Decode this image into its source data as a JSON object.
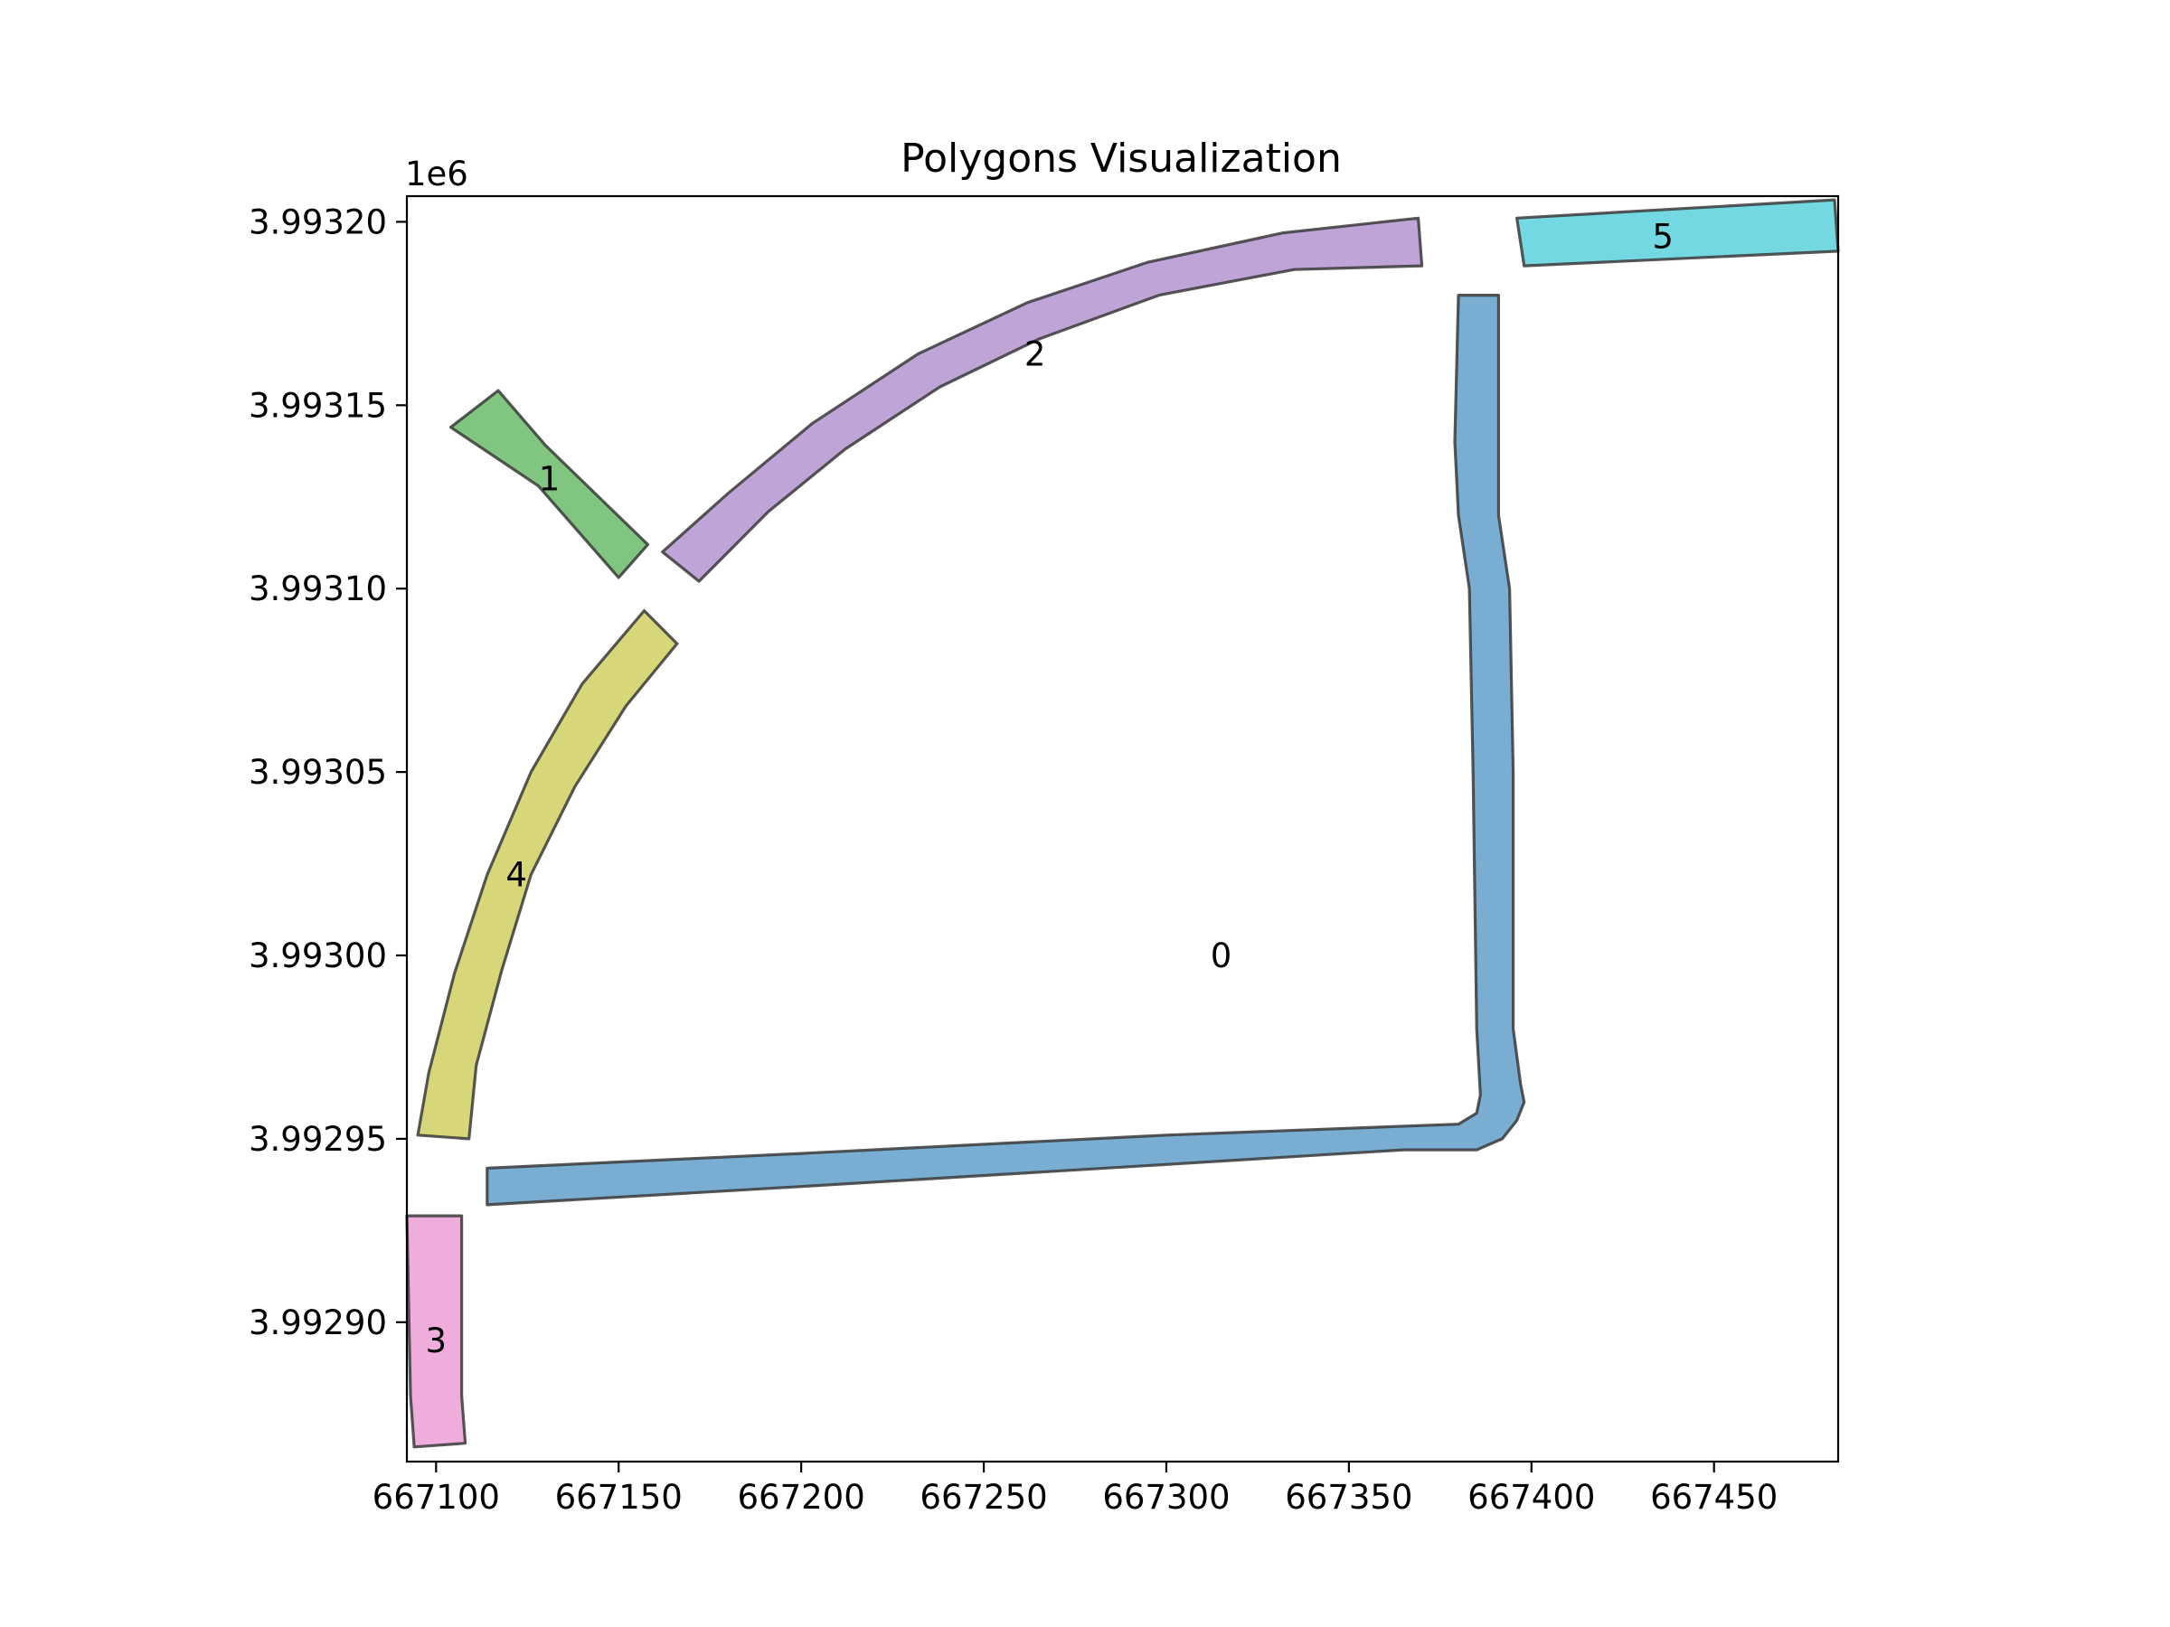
{
  "chart_data": {
    "type": "polygons",
    "title": "Polygons Visualization",
    "xlabel": "",
    "ylabel": "",
    "y_offset_text": "1e6",
    "xlim": [
      667092,
      667484
    ],
    "ylim": [
      3992862,
      3993207
    ],
    "x_ticks": [
      667100,
      667150,
      667200,
      667250,
      667300,
      667350,
      667400,
      667450
    ],
    "x_tick_labels": [
      "667100",
      "667150",
      "667200",
      "667250",
      "667300",
      "667350",
      "667400",
      "667450"
    ],
    "y_ticks": [
      3992900,
      3992950,
      3993000,
      3993050,
      3993100,
      3993150,
      3993200
    ],
    "y_tick_labels": [
      "3.99290",
      "3.99295",
      "3.99300",
      "3.99305",
      "3.99310",
      "3.99315",
      "3.99320"
    ],
    "grid": false,
    "polygons": [
      {
        "label": "0",
        "color": "#1f77b4",
        "label_at": [
          667315,
          3993000
        ],
        "coords": [
          [
            667114,
            3992942
          ],
          [
            667200,
            3992946
          ],
          [
            667300,
            3992951
          ],
          [
            667380,
            3992954
          ],
          [
            667385,
            3992957
          ],
          [
            667386,
            3992962
          ],
          [
            667385,
            3992980
          ],
          [
            667384,
            3993050
          ],
          [
            667383,
            3993100
          ],
          [
            667380,
            3993120
          ],
          [
            667379,
            3993140
          ],
          [
            667380,
            3993180
          ],
          [
            667391,
            3993180
          ],
          [
            667391,
            3993150
          ],
          [
            667391,
            3993120
          ],
          [
            667394,
            3993100
          ],
          [
            667395,
            3993050
          ],
          [
            667395,
            3992980
          ],
          [
            667397,
            3992965
          ],
          [
            667398,
            3992960
          ],
          [
            667396,
            3992955
          ],
          [
            667392,
            3992950
          ],
          [
            667385,
            3992947
          ],
          [
            667377,
            3992947
          ],
          [
            667365,
            3992947
          ],
          [
            667300,
            3992943
          ],
          [
            667200,
            3992937
          ],
          [
            667114,
            3992932
          ]
        ]
      },
      {
        "label": "1",
        "color": "#2ca02c",
        "label_at": [
          667131,
          3993130
        ],
        "coords": [
          [
            667104,
            3993144
          ],
          [
            667117,
            3993154
          ],
          [
            667130,
            3993139
          ],
          [
            667158,
            3993112
          ],
          [
            667150,
            3993103
          ],
          [
            667128,
            3993128
          ],
          [
            667116,
            3993136
          ]
        ]
      },
      {
        "label": "2",
        "color": "#9467bd",
        "label_at": [
          667264,
          3993164
        ],
        "coords": [
          [
            667162,
            3993110
          ],
          [
            667180,
            3993126
          ],
          [
            667203,
            3993145
          ],
          [
            667232,
            3993164
          ],
          [
            667262,
            3993178
          ],
          [
            667295,
            3993189
          ],
          [
            667332,
            3993197
          ],
          [
            667369,
            3993201
          ],
          [
            667370,
            3993188
          ],
          [
            667335,
            3993187
          ],
          [
            667298,
            3993180
          ],
          [
            667265,
            3993168
          ],
          [
            667238,
            3993155
          ],
          [
            667212,
            3993138
          ],
          [
            667191,
            3993121
          ],
          [
            667172,
            3993102
          ]
        ]
      },
      {
        "label": "3",
        "color": "#e377c2",
        "label_at": [
          667100,
          3992895
        ],
        "coords": [
          [
            667092,
            3992929
          ],
          [
            667107,
            3992929
          ],
          [
            667107,
            3992880
          ],
          [
            667108,
            3992867
          ],
          [
            667094,
            3992866
          ],
          [
            667093,
            3992880
          ]
        ]
      },
      {
        "label": "4",
        "color": "#bcbd22",
        "label_at": [
          667122,
          3993022
        ],
        "coords": [
          [
            667095,
            3992951
          ],
          [
            667098,
            3992968
          ],
          [
            667105,
            3992995
          ],
          [
            667114,
            3993022
          ],
          [
            667126,
            3993050
          ],
          [
            667140,
            3993074
          ],
          [
            667157,
            3993094
          ],
          [
            667166,
            3993085
          ],
          [
            667152,
            3993068
          ],
          [
            667138,
            3993046
          ],
          [
            667126,
            3993022
          ],
          [
            667118,
            3992996
          ],
          [
            667111,
            3992970
          ],
          [
            667109,
            3992950
          ]
        ]
      },
      {
        "label": "5",
        "color": "#17becf",
        "label_at": [
          667436,
          3993196
        ],
        "coords": [
          [
            667396,
            3993201
          ],
          [
            667483,
            3993206
          ],
          [
            667484,
            3993192
          ],
          [
            667398,
            3993188
          ]
        ]
      }
    ]
  }
}
